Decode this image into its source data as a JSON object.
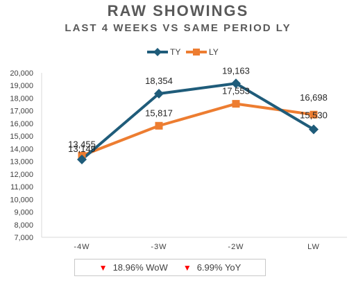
{
  "chart_data": {
    "type": "line",
    "title": "RAW SHOWINGS",
    "subtitle": "LAST 4 WEEKS VS SAME PERIOD LY",
    "categories": [
      "-4W",
      "-3W",
      "-2W",
      "LW"
    ],
    "series": [
      {
        "name": "TY",
        "values": [
          13149,
          18354,
          19163,
          15530
        ],
        "color": "#1f5c7a",
        "marker": "diamond",
        "labels": [
          "13,149",
          "18,354",
          "19,163",
          "15,530"
        ]
      },
      {
        "name": "LY",
        "values": [
          13455,
          15817,
          17553,
          16698
        ],
        "color": "#ed7d31",
        "marker": "square",
        "labels": [
          "13,455",
          "15,817",
          "17,553",
          "16,698"
        ]
      }
    ],
    "ylim": [
      7000,
      20000
    ],
    "yticks": [
      "7,000",
      "8,000",
      "9,000",
      "10,000",
      "11,000",
      "12,000",
      "13,000",
      "14,000",
      "15,000",
      "16,000",
      "17,000",
      "18,000",
      "19,000",
      "20,000"
    ],
    "legend": "top",
    "grid": false
  },
  "footer": {
    "wow_icon": "red-down-triangle",
    "wow_text": "18.96% WoW",
    "yoy_icon": "red-down-triangle",
    "yoy_text": "6.99% YoY"
  }
}
